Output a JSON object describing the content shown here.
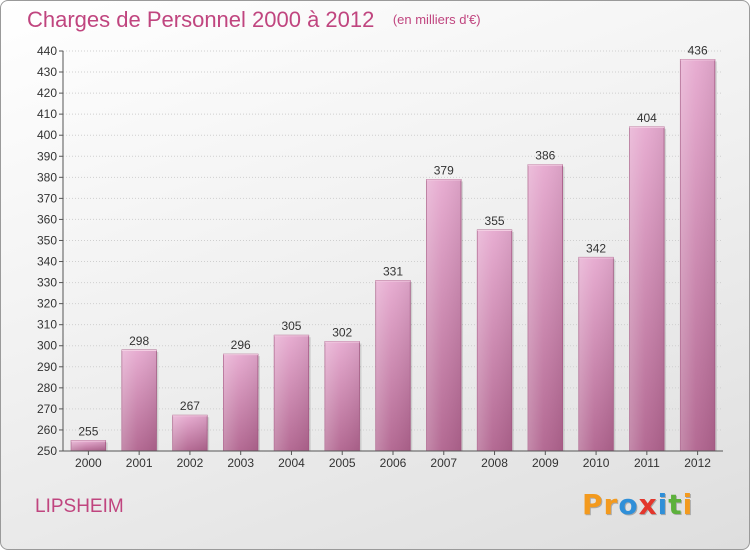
{
  "chart_data": {
    "type": "bar",
    "title": "Charges de Personnel 2000 à 2012",
    "subtitle": "(en milliers d'€)",
    "categories": [
      "2000",
      "2001",
      "2002",
      "2003",
      "2004",
      "2005",
      "2006",
      "2007",
      "2008",
      "2009",
      "2010",
      "2011",
      "2012"
    ],
    "values": [
      255,
      298,
      267,
      296,
      305,
      302,
      331,
      379,
      355,
      386,
      342,
      404,
      436
    ],
    "ylim": [
      250,
      440
    ],
    "yticks": [
      250,
      260,
      270,
      280,
      290,
      300,
      310,
      320,
      330,
      340,
      350,
      360,
      370,
      380,
      390,
      400,
      410,
      420,
      430,
      440
    ],
    "grid": true,
    "bar_color_top": "#e6a9cf",
    "bar_color_bottom": "#b0638e"
  },
  "footer": {
    "place": "LIPSHEIM"
  },
  "logo": {
    "letters": [
      "P",
      "r",
      "o",
      "x",
      "i",
      "t",
      "i"
    ],
    "colors": [
      "#f39a1e",
      "#f39a1e",
      "#2f8fd8",
      "#e3362c",
      "#2f8fd8",
      "#5db13c",
      "#f39a1e"
    ]
  },
  "colors": {
    "accent": "#c0457f"
  }
}
